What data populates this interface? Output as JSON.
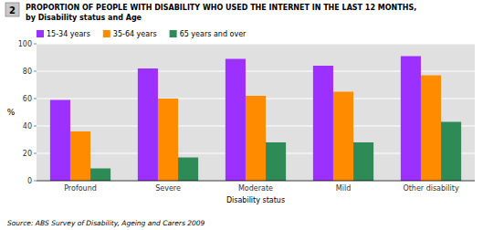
{
  "chart_data": {
    "type": "bar",
    "title": "PROPORTION OF PEOPLE WITH DISABILITY WHO USED THE INTERNET IN THE LAST 12 MONTHS,",
    "subtitle": "by Disability status and Age",
    "x_label": "Disability status",
    "y_label": "%",
    "annotations": [
      "2",
      "Source: ABS Survey of Disability, Ageing and Carers 2009"
    ],
    "categories": [
      "Profound",
      "Severe",
      "Moderate",
      "Mild",
      "Other disability"
    ],
    "series": [
      {
        "name": "15-34 years",
        "color": "#9B30FF",
        "values": [
          59,
          82,
          89,
          84,
          91
        ]
      },
      {
        "name": "35-64 years",
        "color": "#FF8C00",
        "values": [
          36,
          60,
          62,
          65,
          77
        ]
      },
      {
        "name": "65 years and over",
        "color": "#2E8B57",
        "values": [
          9,
          17,
          28,
          28,
          43
        ]
      }
    ],
    "ylim": [
      0,
      100
    ],
    "yticks": [
      0,
      20,
      40,
      60,
      80,
      100
    ],
    "grid": true,
    "legend": "upper left"
  }
}
